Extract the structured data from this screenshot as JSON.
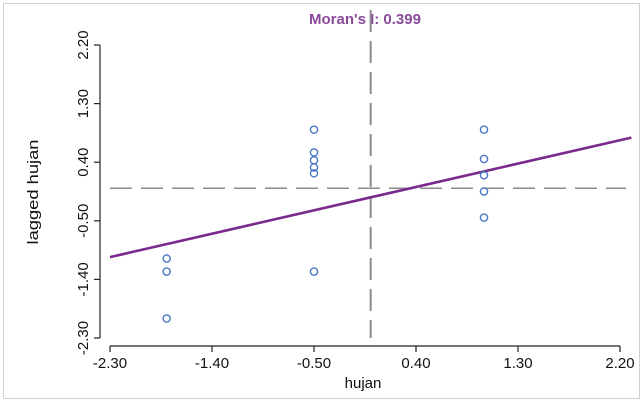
{
  "chart_data": {
    "type": "scatter",
    "title": "Moran's I: 0.399",
    "xlabel": "hujan",
    "ylabel": "lagged hujan",
    "xlim": [
      -2.3,
      2.2
    ],
    "ylim": [
      -2.3,
      2.2
    ],
    "xticks": [
      "-2.30",
      "-1.40",
      "-0.50",
      "0.40",
      "1.30",
      "2.20"
    ],
    "yticks": [
      "-2.30",
      "-1.40",
      "-0.50",
      "0.40",
      "1.30",
      "2.20"
    ],
    "grid": false,
    "points": [
      {
        "x": -1.8,
        "y": -1.08
      },
      {
        "x": -1.8,
        "y": -1.28
      },
      {
        "x": -1.8,
        "y": -2.0
      },
      {
        "x": -0.5,
        "y": 0.9
      },
      {
        "x": -0.5,
        "y": 0.55
      },
      {
        "x": -0.5,
        "y": 0.43
      },
      {
        "x": -0.5,
        "y": 0.32
      },
      {
        "x": -0.5,
        "y": 0.23
      },
      {
        "x": -0.5,
        "y": -1.28
      },
      {
        "x": 1.0,
        "y": 0.9
      },
      {
        "x": 1.0,
        "y": 0.45
      },
      {
        "x": 1.0,
        "y": 0.2
      },
      {
        "x": 1.0,
        "y": -0.05
      },
      {
        "x": 1.0,
        "y": -0.45
      }
    ],
    "regression": {
      "slope": 0.399,
      "intercept": -0.14
    },
    "mean_lines": {
      "x": 0.0,
      "y": 0.0
    },
    "colors": {
      "points": "#4a78c4",
      "regression": "#7a2a8c",
      "title": "#8a4a9a",
      "mean_lines": "#8a8a8a"
    }
  }
}
